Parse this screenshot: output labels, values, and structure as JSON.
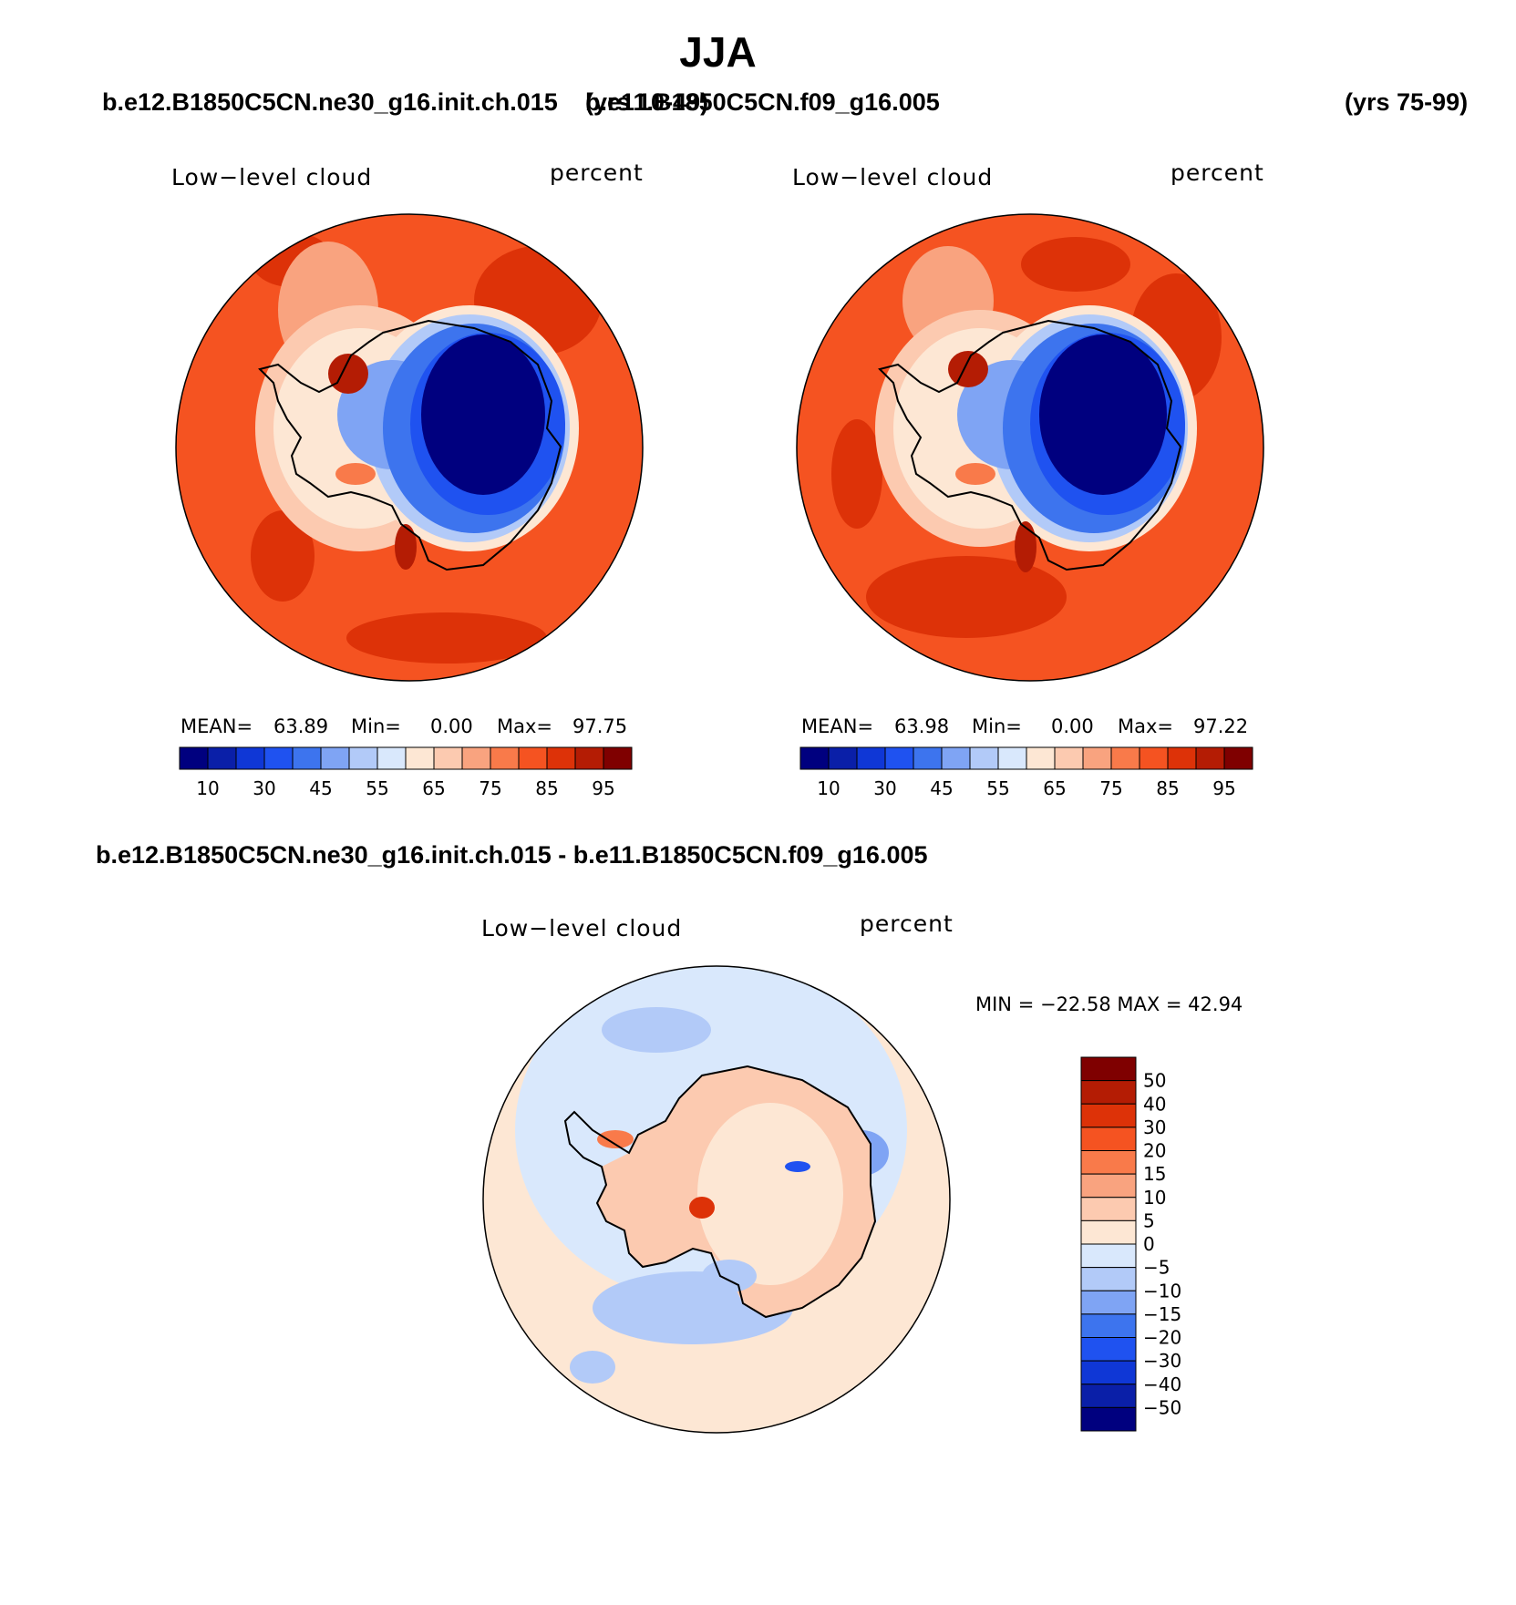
{
  "page": {
    "title": "JJA",
    "header_case_left": "b.e12.B1850C5CN.ne30_g16.init.ch.015",
    "header_years_left": "(yrs 10-49)",
    "header_case_right": "b.e11.B1850C5CN.f09_g16.005",
    "header_years_right": "(yrs 75-99)",
    "diff_title": "b.e12.B1850C5CN.ne30_g16.init.ch.015 - b.e11.B1850C5CN.f09_g16.005"
  },
  "panels": [
    {
      "variable": "Low−level cloud",
      "units": "percent",
      "stats": {
        "mean_label": "MEAN=",
        "mean": "63.89",
        "min_label": "Min=",
        "min": "0.00",
        "max_label": "Max=",
        "max": "97.75"
      }
    },
    {
      "variable": "Low−level cloud",
      "units": "percent",
      "stats": {
        "mean_label": "MEAN=",
        "mean": "63.98",
        "min_label": "Min=",
        "min": "0.00",
        "max_label": "Max=",
        "max": "97.22"
      }
    }
  ],
  "diff_panel": {
    "variable": "Low−level cloud",
    "units": "percent",
    "minmax": "MIN = −22.58 MAX =   42.94"
  },
  "colorbar_field": {
    "colors": [
      "#00007f",
      "#0a1fa8",
      "#0f37d6",
      "#1f52f0",
      "#3d74ee",
      "#7fa4f4",
      "#b2caf8",
      "#d9e8fc",
      "#fde7d4",
      "#fccab0",
      "#f9a37f",
      "#f97a4a",
      "#f55321",
      "#dd3208",
      "#b41c04",
      "#7f0000"
    ],
    "labels": [
      "10",
      "30",
      "45",
      "55",
      "65",
      "75",
      "85",
      "95"
    ]
  },
  "colorbar_diff": {
    "colors": [
      "#7f0000",
      "#b41c04",
      "#dd3208",
      "#f55321",
      "#f97a4a",
      "#f9a37f",
      "#fccab0",
      "#fde7d4",
      "#d9e8fc",
      "#b2caf8",
      "#7fa4f4",
      "#3d74ee",
      "#1f52f0",
      "#0f37d6",
      "#0a1fa8",
      "#00007f"
    ],
    "labels": [
      "50",
      "40",
      "30",
      "20",
      "15",
      "10",
      "5",
      "0",
      "−5",
      "−10",
      "−15",
      "−20",
      "−30",
      "−40",
      "−50"
    ]
  },
  "palette": {
    "ocean_warm": "#f55321",
    "ice_blue": "#00007f",
    "diff_pos": "#fde7d4",
    "diff_neg": "#d9e8fc"
  }
}
